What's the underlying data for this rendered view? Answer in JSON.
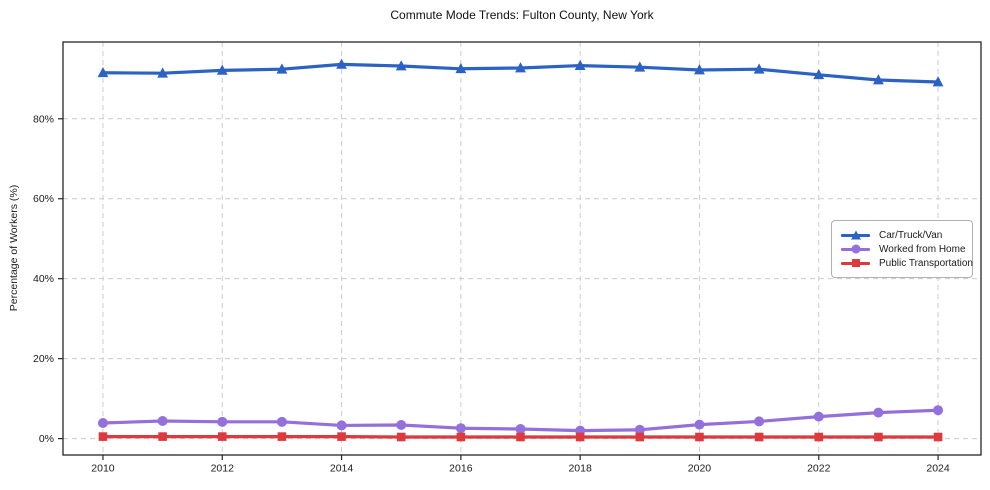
{
  "chart_data": {
    "type": "line",
    "title": "Commute Mode Trends: Fulton County, New York",
    "xlabel": "",
    "ylabel": "Percentage of Workers (%)",
    "x": [
      2010,
      2011,
      2012,
      2013,
      2014,
      2015,
      2016,
      2017,
      2018,
      2019,
      2020,
      2021,
      2022,
      2023,
      2024
    ],
    "series": [
      {
        "id": "car-truck-van",
        "name": "Car/Truck/Van",
        "color": "#2b62c4",
        "marker": "triangle",
        "values": [
          91.5,
          91.4,
          92.1,
          92.4,
          93.6,
          93.2,
          92.5,
          92.7,
          93.3,
          92.9,
          92.2,
          92.4,
          91.0,
          89.7,
          89.2
        ]
      },
      {
        "id": "worked-from-home",
        "name": "Worked from Home",
        "color": "#9370db",
        "marker": "circle",
        "values": [
          3.9,
          4.4,
          4.2,
          4.2,
          3.3,
          3.4,
          2.6,
          2.4,
          2.0,
          2.2,
          3.5,
          4.3,
          5.5,
          6.5,
          7.1
        ]
      },
      {
        "id": "public-transportation",
        "name": "Public Transportation",
        "color": "#dc3a3d",
        "marker": "square",
        "values": [
          0.5,
          0.5,
          0.5,
          0.5,
          0.5,
          0.4,
          0.4,
          0.4,
          0.4,
          0.4,
          0.4,
          0.4,
          0.4,
          0.4,
          0.4
        ]
      }
    ],
    "x_ticks": [
      {
        "v": 2010,
        "label": "2010"
      },
      {
        "v": 2012,
        "label": "2012"
      },
      {
        "v": 2014,
        "label": "2014"
      },
      {
        "v": 2016,
        "label": "2016"
      },
      {
        "v": 2018,
        "label": "2018"
      },
      {
        "v": 2020,
        "label": "2020"
      },
      {
        "v": 2022,
        "label": "2022"
      },
      {
        "v": 2024,
        "label": "2024"
      }
    ],
    "y_ticks": [
      {
        "v": 0,
        "label": "0%"
      },
      {
        "v": 20,
        "label": "20%"
      },
      {
        "v": 40,
        "label": "40%"
      },
      {
        "v": 60,
        "label": "60%"
      },
      {
        "v": 80,
        "label": "80%"
      }
    ],
    "xlim": [
      2009.33,
      2024.72
    ],
    "ylim": [
      -4.1,
      99.2
    ],
    "grid": true,
    "legend_position": "center-right",
    "colors": {
      "grid": "#cccccc",
      "axis": "#262626",
      "text": "#1b1b1b",
      "background": "#ffffff"
    }
  }
}
